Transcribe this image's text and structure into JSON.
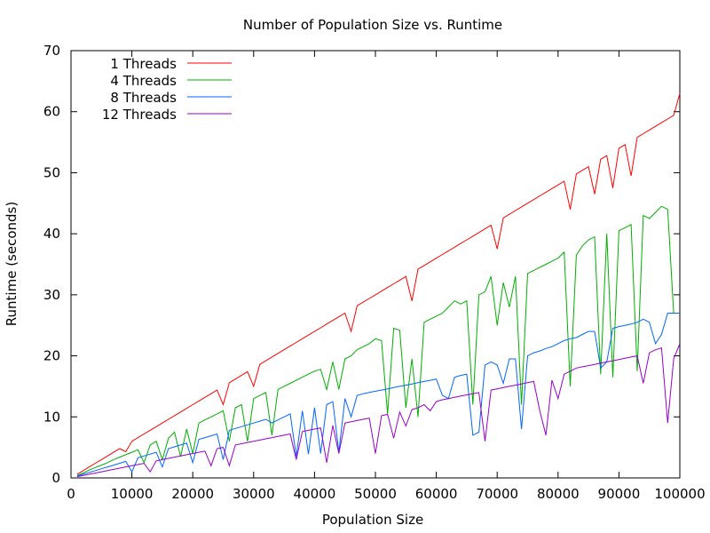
{
  "chart_data": {
    "type": "line",
    "title": "Number of Population Size vs. Runtime",
    "xlabel": "Population Size",
    "ylabel": "Runtime (seconds)",
    "xlim": [
      0,
      100000
    ],
    "ylim": [
      0,
      70
    ],
    "xticks": [
      0,
      10000,
      20000,
      30000,
      40000,
      50000,
      60000,
      70000,
      80000,
      90000,
      100000
    ],
    "yticks": [
      0,
      10,
      20,
      30,
      40,
      50,
      60,
      70
    ],
    "grid": false,
    "legend": "top-left",
    "x": [
      1000,
      2000,
      3000,
      4000,
      5000,
      6000,
      7000,
      8000,
      9000,
      10000,
      11000,
      12000,
      13000,
      14000,
      15000,
      16000,
      17000,
      18000,
      19000,
      20000,
      21000,
      22000,
      23000,
      24000,
      25000,
      26000,
      27000,
      28000,
      29000,
      30000,
      31000,
      32000,
      33000,
      34000,
      35000,
      36000,
      37000,
      38000,
      39000,
      40000,
      41000,
      42000,
      43000,
      44000,
      45000,
      46000,
      47000,
      48000,
      49000,
      50000,
      51000,
      52000,
      53000,
      54000,
      55000,
      56000,
      57000,
      58000,
      59000,
      60000,
      61000,
      62000,
      63000,
      64000,
      65000,
      66000,
      67000,
      68000,
      69000,
      70000,
      71000,
      72000,
      73000,
      74000,
      75000,
      76000,
      77000,
      78000,
      79000,
      80000,
      81000,
      82000,
      83000,
      84000,
      85000,
      86000,
      87000,
      88000,
      89000,
      90000,
      91000,
      92000,
      93000,
      94000,
      95000,
      96000,
      97000,
      98000,
      99000,
      100000
    ],
    "series": [
      {
        "name": "1 Threads",
        "color": "#ff0000",
        "values": [
          0.6,
          1.2,
          1.8,
          2.4,
          3.0,
          3.6,
          4.2,
          4.8,
          4.3,
          6.0,
          6.6,
          7.2,
          7.8,
          8.4,
          9.0,
          9.6,
          10.2,
          10.8,
          11.4,
          12.0,
          12.6,
          13.2,
          13.8,
          14.4,
          12.0,
          15.6,
          16.2,
          16.8,
          17.4,
          15.0,
          18.6,
          19.2,
          19.8,
          20.4,
          21.0,
          21.6,
          22.2,
          22.8,
          23.4,
          24.0,
          24.6,
          25.2,
          25.8,
          26.4,
          27.0,
          24.0,
          28.2,
          28.8,
          29.4,
          30.0,
          30.6,
          31.2,
          31.8,
          32.4,
          33.0,
          29.0,
          34.2,
          34.8,
          35.4,
          36.0,
          36.6,
          37.2,
          37.8,
          38.4,
          39.0,
          39.6,
          40.2,
          40.8,
          41.4,
          37.5,
          42.6,
          43.2,
          43.8,
          44.4,
          45.0,
          45.6,
          46.2,
          46.8,
          47.4,
          48.0,
          48.6,
          44.0,
          49.8,
          50.4,
          51.0,
          46.5,
          52.2,
          52.8,
          47.5,
          54.0,
          54.6,
          49.5,
          55.8,
          56.4,
          57.0,
          57.6,
          58.2,
          58.8,
          59.4,
          63.0
        ]
      },
      {
        "name": "4 Threads",
        "color": "#00b000",
        "values": [
          0.4,
          0.8,
          1.3,
          1.7,
          2.1,
          2.5,
          3.0,
          3.4,
          3.8,
          4.2,
          4.6,
          2.5,
          5.4,
          6.0,
          3.0,
          6.5,
          7.5,
          3.5,
          8.0,
          4.0,
          9.0,
          9.5,
          10.0,
          10.5,
          11.0,
          6.0,
          11.5,
          12.0,
          6.0,
          13.0,
          13.5,
          14.0,
          7.0,
          14.5,
          15.0,
          15.5,
          16.0,
          16.5,
          17.0,
          17.5,
          17.8,
          14.5,
          19.0,
          14.5,
          19.5,
          20.0,
          21.0,
          21.5,
          22.0,
          22.8,
          22.5,
          10.5,
          24.5,
          24.2,
          11.5,
          19.5,
          10.0,
          25.5,
          26.0,
          26.5,
          27.0,
          28.0,
          29.0,
          28.5,
          29.0,
          12.0,
          30.0,
          30.5,
          33.0,
          25.0,
          32.0,
          28.0,
          33.0,
          12.0,
          33.5,
          34.0,
          34.5,
          35.0,
          35.5,
          36.0,
          37.0,
          15.0,
          36.5,
          38.0,
          39.0,
          39.5,
          17.0,
          40.0,
          16.5,
          40.5,
          41.0,
          41.5,
          17.5,
          43.0,
          42.5,
          43.5,
          44.5,
          44.0,
          27.0,
          27.0
        ]
      },
      {
        "name": "8 Threads",
        "color": "#0066ff",
        "values": [
          0.3,
          0.6,
          0.9,
          1.2,
          1.5,
          1.8,
          2.1,
          2.4,
          2.7,
          1.0,
          3.3,
          3.6,
          3.9,
          4.2,
          1.8,
          4.8,
          5.1,
          5.4,
          5.7,
          2.5,
          6.3,
          6.6,
          6.9,
          7.2,
          3.0,
          7.8,
          8.1,
          8.4,
          8.7,
          9.0,
          9.3,
          9.6,
          9.0,
          9.5,
          10.0,
          10.5,
          3.5,
          11.0,
          3.9,
          11.5,
          4.0,
          12.0,
          12.5,
          4.2,
          13.0,
          10.0,
          13.5,
          13.8,
          14.0,
          14.2,
          14.4,
          14.6,
          14.8,
          15.0,
          15.2,
          15.4,
          15.6,
          15.8,
          16.0,
          16.2,
          13.5,
          13.0,
          16.5,
          16.8,
          17.0,
          7.0,
          7.5,
          18.5,
          19.0,
          18.5,
          15.5,
          19.5,
          19.5,
          8.0,
          20.0,
          20.5,
          20.8,
          21.2,
          21.5,
          22.0,
          22.5,
          22.8,
          23.0,
          23.5,
          24.0,
          24.0,
          18.0,
          19.0,
          24.5,
          24.8,
          25.0,
          25.2,
          25.5,
          26.0,
          25.5,
          22.0,
          23.5,
          27.0,
          27.0,
          27.0
        ]
      },
      {
        "name": "12 Threads",
        "color": "#9900cc",
        "values": [
          0.2,
          0.4,
          0.6,
          0.8,
          1.0,
          1.2,
          1.4,
          1.6,
          1.8,
          2.0,
          2.2,
          2.4,
          1.0,
          2.8,
          3.0,
          3.2,
          3.4,
          3.6,
          3.8,
          4.0,
          4.2,
          4.4,
          2.0,
          4.8,
          5.0,
          2.0,
          5.4,
          5.6,
          5.8,
          6.0,
          6.2,
          6.4,
          6.6,
          6.8,
          7.0,
          7.2,
          3.0,
          7.6,
          7.8,
          8.0,
          8.2,
          2.5,
          8.6,
          4.0,
          9.0,
          9.2,
          9.4,
          9.6,
          9.8,
          4.0,
          10.2,
          10.4,
          6.5,
          10.8,
          8.5,
          11.2,
          11.5,
          12.0,
          11.0,
          12.5,
          12.8,
          13.0,
          13.2,
          13.4,
          13.6,
          13.8,
          14.0,
          6.0,
          14.4,
          14.6,
          14.8,
          15.0,
          15.2,
          15.4,
          15.6,
          15.8,
          11.0,
          7.0,
          16.0,
          13.0,
          17.0,
          17.5,
          18.0,
          18.2,
          18.4,
          18.6,
          18.8,
          19.0,
          19.2,
          19.4,
          19.6,
          19.8,
          20.0,
          15.5,
          20.5,
          21.0,
          21.3,
          9.0,
          19.5,
          22.0
        ]
      }
    ]
  }
}
